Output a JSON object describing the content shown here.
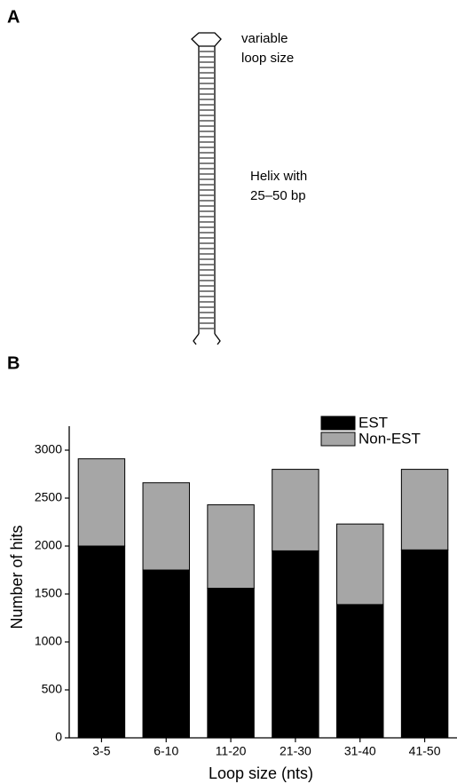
{
  "panel_labels": [
    "A",
    "B"
  ],
  "diagram": {
    "loop_label": [
      "variable",
      "loop size"
    ],
    "helix_label": [
      "Helix with",
      "25–50 bp"
    ]
  },
  "chart_data": {
    "type": "stacked_bar",
    "x_label": "Loop size (nts)",
    "y_label": "Number of hits",
    "categories": [
      "3-5",
      "6-10",
      "11-20",
      "21-30",
      "31-40",
      "41-50"
    ],
    "series": [
      {
        "name": "EST",
        "color": "#000000",
        "values": [
          2000,
          1750,
          1560,
          1950,
          1390,
          1960
        ]
      },
      {
        "name": "Non-EST",
        "color": "#a6a6a6",
        "values": [
          910,
          910,
          870,
          850,
          840,
          840
        ]
      }
    ],
    "ylim": [
      0,
      3250
    ],
    "yticks": [
      0,
      500,
      1000,
      1500,
      2000,
      2500,
      3000
    ],
    "legend": "upper right"
  }
}
